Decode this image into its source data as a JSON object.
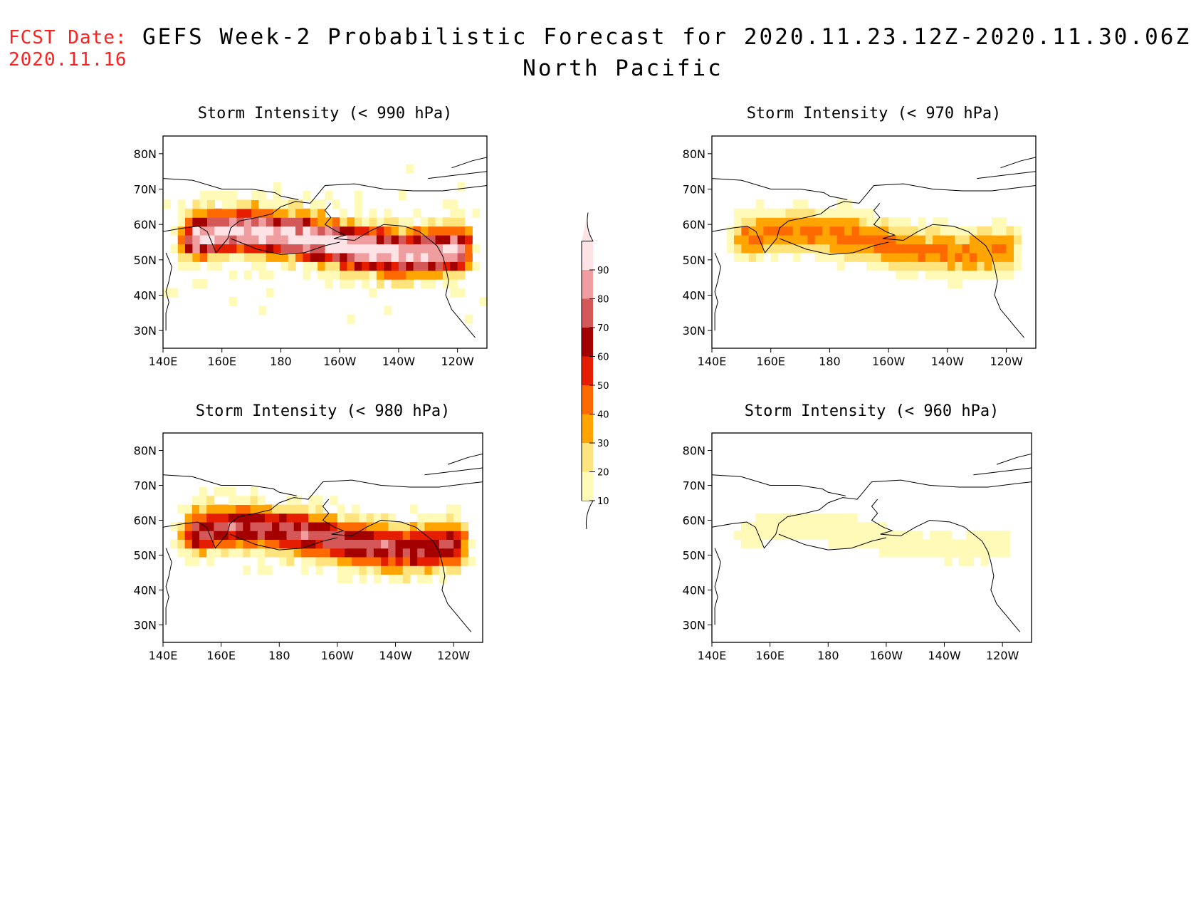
{
  "header": {
    "fcst_label": "FCST Date:",
    "fcst_date": "2020.11.16",
    "title": "GEFS Week-2 Probabilistic Forecast for 2020.11.23.12Z-2020.11.30.06Z",
    "subtitle": "North Pacific"
  },
  "panels": [
    {
      "title": "Storm Intensity (< 990 hPa)",
      "scale": 1.0
    },
    {
      "title": "Storm Intensity (< 970 hPa)",
      "scale": 0.45
    },
    {
      "title": "Storm Intensity (< 980 hPa)",
      "scale": 0.78
    },
    {
      "title": "Storm Intensity (< 960 hPa)",
      "scale": 0.15
    }
  ],
  "axes": {
    "lat_labels": [
      "80N",
      "70N",
      "60N",
      "50N",
      "40N",
      "30N"
    ],
    "lon_labels": [
      "140E",
      "160E",
      "180",
      "160W",
      "140W",
      "120W"
    ]
  },
  "colorbar": {
    "levels": [
      "10",
      "20",
      "30",
      "40",
      "50",
      "60",
      "70",
      "80",
      "90"
    ],
    "colors": [
      "#fffab8",
      "#ffe37d",
      "#ffa400",
      "#ff6a00",
      "#e61e00",
      "#a50000",
      "#d45858",
      "#f09da0",
      "#fde3e6"
    ]
  }
}
